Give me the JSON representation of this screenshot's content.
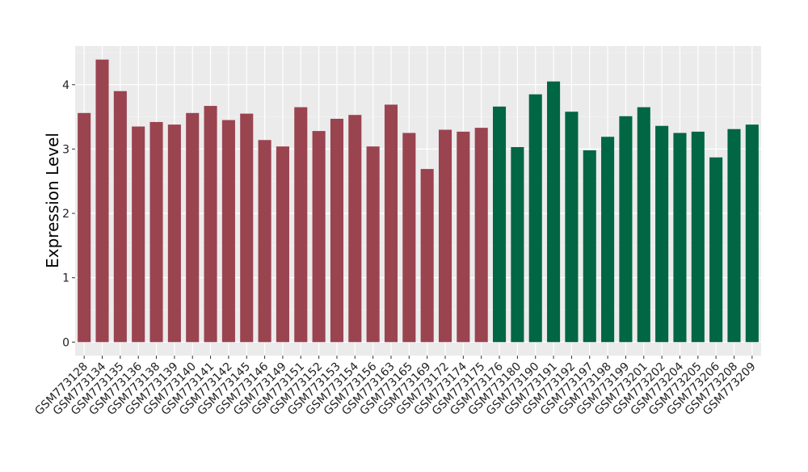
{
  "chart_data": {
    "type": "bar",
    "title": "",
    "xlabel": "",
    "ylabel": "Expression Level",
    "ylim": [
      -0.21,
      4.6
    ],
    "yticks": [
      0,
      1,
      2,
      3,
      4
    ],
    "grid": true,
    "legend": "none",
    "categories": [
      "GSM773128",
      "GSM773134",
      "GSM773135",
      "GSM773136",
      "GSM773138",
      "GSM773139",
      "GSM773140",
      "GSM773141",
      "GSM773142",
      "GSM773145",
      "GSM773146",
      "GSM773149",
      "GSM773151",
      "GSM773152",
      "GSM773153",
      "GSM773154",
      "GSM773156",
      "GSM773163",
      "GSM773165",
      "GSM773169",
      "GSM773172",
      "GSM773174",
      "GSM773175",
      "GSM773176",
      "GSM773180",
      "GSM773190",
      "GSM773191",
      "GSM773192",
      "GSM773197",
      "GSM773198",
      "GSM773199",
      "GSM773201",
      "GSM773202",
      "GSM773204",
      "GSM773205",
      "GSM773206",
      "GSM773208",
      "GSM773209"
    ],
    "values": [
      3.56,
      4.39,
      3.9,
      3.35,
      3.42,
      3.38,
      3.56,
      3.67,
      3.45,
      3.55,
      3.14,
      3.04,
      3.65,
      3.28,
      3.47,
      3.53,
      3.04,
      3.69,
      3.25,
      2.69,
      3.3,
      3.27,
      3.33,
      3.66,
      3.03,
      3.85,
      4.05,
      3.58,
      2.98,
      3.19,
      3.51,
      3.65,
      3.36,
      3.25,
      3.27,
      2.87,
      3.31,
      3.38
    ],
    "groups": [
      0,
      0,
      0,
      0,
      0,
      0,
      0,
      0,
      0,
      0,
      0,
      0,
      0,
      0,
      0,
      0,
      0,
      0,
      0,
      0,
      0,
      0,
      0,
      1,
      1,
      1,
      1,
      1,
      1,
      1,
      1,
      1,
      1,
      1,
      1,
      1,
      1,
      1
    ],
    "group_colors": [
      "#9a4450",
      "#006643"
    ],
    "panel_color": "#ebebeb"
  }
}
